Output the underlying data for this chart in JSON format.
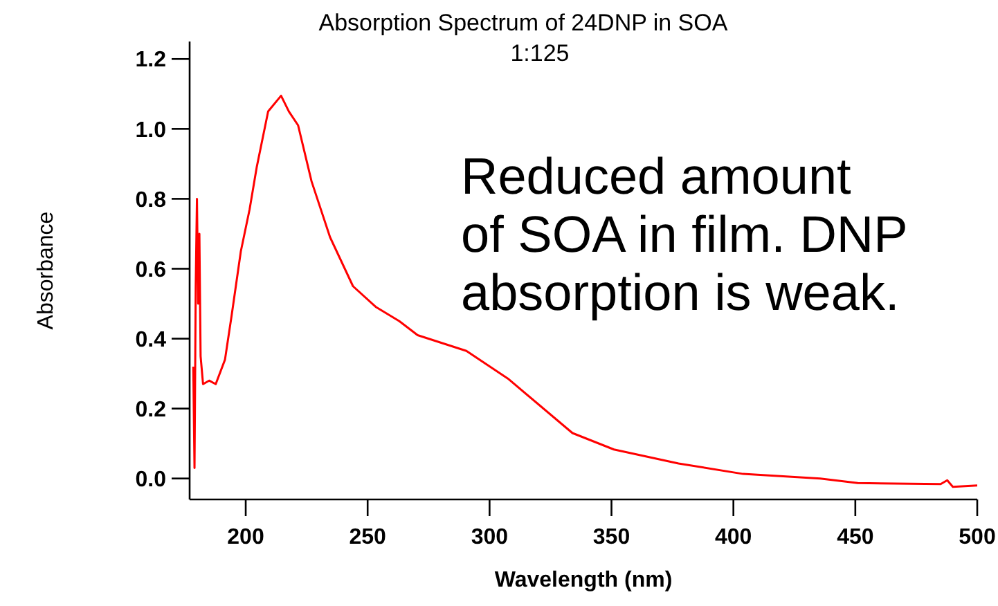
{
  "chart_data": {
    "type": "line",
    "title": "Absorption Spectrum of 24DNP in SOA",
    "subtitle": "1:125",
    "xlabel": "Wavelength (nm)",
    "ylabel": "Absorbance",
    "annotations": [
      "Reduced amount\nof SOA in film. DNP\nabsorption is weak."
    ],
    "xlim": [
      177,
      500
    ],
    "xticks": [
      200,
      250,
      300,
      350,
      400,
      450,
      500
    ],
    "ylim": [
      -0.06,
      1.25
    ],
    "yticks": [
      {
        "value": 0,
        "label": "0.0"
      },
      {
        "value": 0.2,
        "label": "0.2"
      },
      {
        "value": 0.4,
        "label": "0.4"
      },
      {
        "value": 0.6,
        "label": "0.6"
      },
      {
        "value": 0.8,
        "label": "0.8"
      },
      {
        "value": 1,
        "label": "1.0"
      },
      {
        "value": 1.2,
        "label": "1.2"
      }
    ],
    "grid": false,
    "marker": "none",
    "line_style": "solid",
    "series": [
      {
        "color": "#ff0000",
        "x": [
          178.5,
          179,
          179.5,
          180,
          180.5,
          181,
          181.5,
          182.5,
          185,
          187.7,
          191.5,
          194.3,
          198,
          201.6,
          204.5,
          209.2,
          214.5,
          217.7,
          221.5,
          227,
          234.6,
          244,
          253.5,
          263,
          270.5,
          290.5,
          307.5,
          334,
          351,
          377.5,
          404,
          435.6,
          451,
          485,
          487.7,
          490,
          500
        ],
        "values": [
          0.32,
          0.03,
          0.55,
          0.8,
          0.5,
          0.7,
          0.35,
          0.27,
          0.28,
          0.27,
          0.34,
          0.47,
          0.65,
          0.77,
          0.89,
          1.05,
          1.095,
          1.05,
          1.01,
          0.85,
          0.69,
          0.55,
          0.49,
          0.45,
          0.41,
          0.365,
          0.286,
          0.13,
          0.083,
          0.043,
          0.013,
          0.0,
          -0.013,
          -0.016,
          -0.005,
          -0.024,
          -0.02
        ]
      }
    ]
  }
}
